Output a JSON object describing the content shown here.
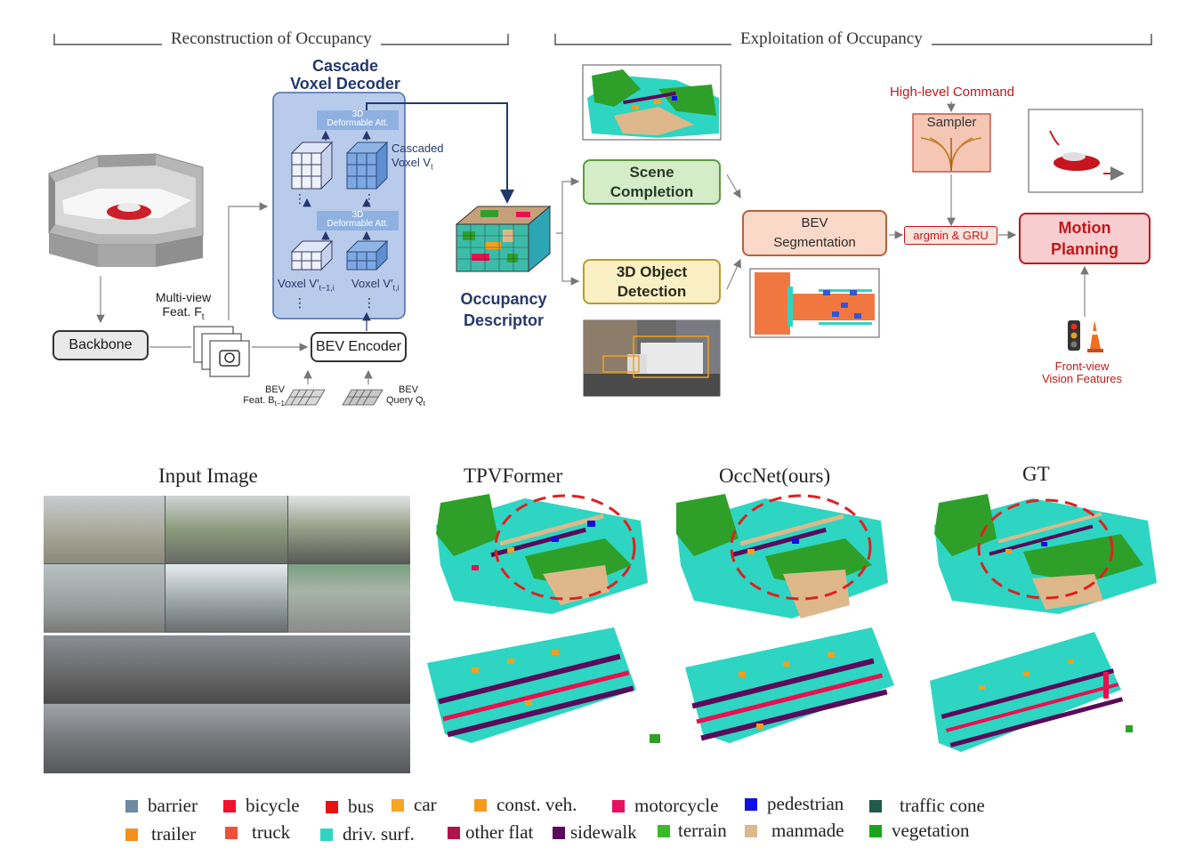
{
  "sections": {
    "reconstruction": "Reconstruction of Occupancy",
    "exploitation": "Exploitation of Occupancy"
  },
  "decoder": {
    "title_line1": "Cascade",
    "title_line2": "Voxel Decoder",
    "attention": "3D",
    "attention_line2": "Deformable Att.",
    "cascaded_line1": "Cascaded",
    "cascaded_line2": "Voxel V",
    "cascaded_sub": "t",
    "voxel_prev": "Voxel V′",
    "voxel_prev_sub": "t−1,i",
    "voxel_cur": "Voxel V′",
    "voxel_cur_sub": "t,i"
  },
  "pipeline": {
    "multiview_line1": "Multi-view",
    "multiview_line2": "Feat. F",
    "multiview_sub": "t",
    "backbone": "Backbone",
    "bev_encoder": "BEV Encoder",
    "bev_feat_line1": "BEV",
    "bev_feat_line2": "Feat. B",
    "bev_feat_sub": "t−1",
    "bev_query_line1": "BEV",
    "bev_query_line2": "Query Q",
    "bev_query_sub": "t",
    "occupancy_line1": "Occupancy",
    "occupancy_line2": "Descriptor"
  },
  "tasks": {
    "scene_line1": "Scene",
    "scene_line2": "Completion",
    "detection_line1": "3D Object",
    "detection_line2": "Detection",
    "bev_seg_line1": "BEV",
    "bev_seg_line2": "Segmentation",
    "high_level": "High-level Command",
    "sampler": "Sampler",
    "argmin": "argmin & GRU",
    "motion_line1": "Motion",
    "motion_line2": "Planning",
    "front_line1": "Front-view",
    "front_line2": "Vision Features"
  },
  "panels": {
    "input": "Input Image",
    "tpv": "TPVFormer",
    "occnet": "OccNet(ours)",
    "gt": "GT"
  },
  "legend": [
    {
      "label": "barrier",
      "color": "#6f8aa0"
    },
    {
      "label": "bicycle",
      "color": "#f0102f"
    },
    {
      "label": "bus",
      "color": "#e81010"
    },
    {
      "label": "car",
      "color": "#f5a623"
    },
    {
      "label": "const. veh.",
      "color": "#f59a1c"
    },
    {
      "label": "motorcycle",
      "color": "#e81060"
    },
    {
      "label": "pedestrian",
      "color": "#1010e0"
    },
    {
      "label": "traffic cone",
      "color": "#1f5a4a"
    },
    {
      "label": "trailer",
      "color": "#f5901c"
    },
    {
      "label": "truck",
      "color": "#f0503a"
    },
    {
      "label": "driv. surf.",
      "color": "#2ed5c2"
    },
    {
      "label": "other flat",
      "color": "#b0124a"
    },
    {
      "label": "sidewalk",
      "color": "#5a0a5a"
    },
    {
      "label": "terrain",
      "color": "#3cb82a"
    },
    {
      "label": "manmade",
      "color": "#deb88a"
    },
    {
      "label": "vegetation",
      "color": "#1aa51a"
    }
  ]
}
